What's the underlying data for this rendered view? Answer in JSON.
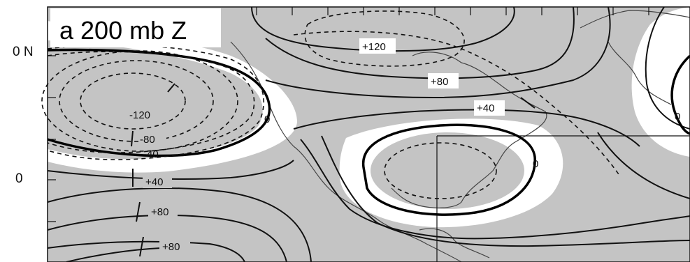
{
  "map": {
    "title": "a 200 mb Z",
    "lat_labels": [
      "0 N",
      "0"
    ],
    "contour_labels": [
      "+120",
      "+80",
      "+40",
      "0",
      "0",
      "0",
      "-120",
      "-80",
      "-40",
      "+40",
      "+80",
      "+80"
    ],
    "colors": {
      "land_shade": "#c4c4c4",
      "ocean": "#ffffff",
      "contour": "#111111",
      "coast": "#444444"
    }
  }
}
